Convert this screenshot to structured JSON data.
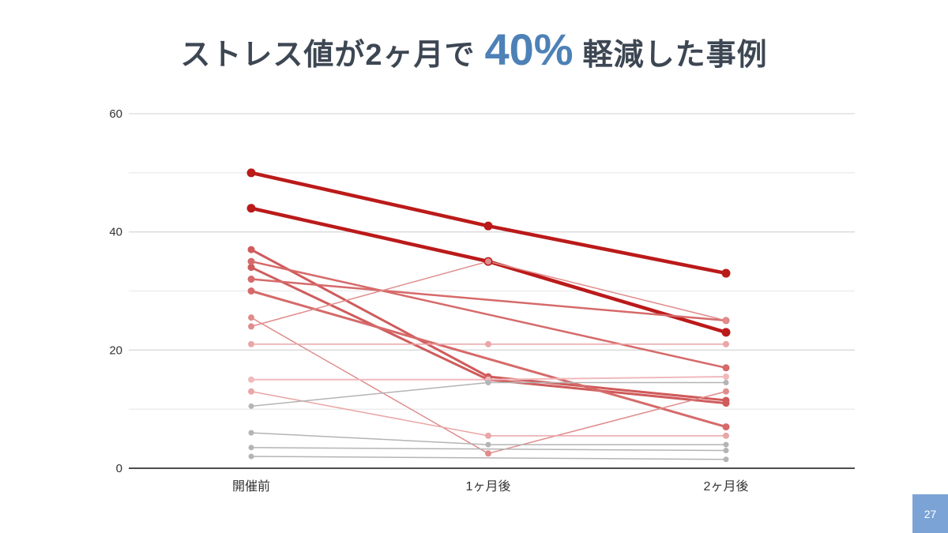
{
  "slide": {
    "title": {
      "pre": "ストレス値が2ヶ月で",
      "highlight": "40%",
      "post": "軽減した事例"
    },
    "page_number": "27"
  },
  "colors": {
    "title_text": "#3d4753",
    "title_highlight": "#4d81b7",
    "page_badge_bg": "#7ba3d6",
    "page_badge_text": "#ffffff",
    "axis_line": "#4d4d4d",
    "gridline_major": "#d9d9d9",
    "gridline_minor": "#ececec",
    "tick_label": "#333333",
    "emphasis_red": "#bb1a1a",
    "neutral_gray": "#b4b4b4"
  },
  "chart_data": {
    "type": "line",
    "title": "ストレス値が2ヶ月で40%軽減した事例",
    "xlabel": "",
    "ylabel": "",
    "categories": [
      "開催前",
      "1ヶ月後",
      "2ヶ月後"
    ],
    "ylim": [
      0,
      60
    ],
    "yticks_labeled": [
      0,
      20,
      40,
      60
    ],
    "gridline_step": 10,
    "grid": true,
    "legend_position": "none",
    "series": [
      {
        "values": [
          50,
          41,
          33
        ],
        "color": "#bb1a1a",
        "width": 4.5,
        "dot": 5.5
      },
      {
        "values": [
          44,
          35,
          23
        ],
        "color": "#bb1a1a",
        "width": 4.5,
        "dot": 5.5
      },
      {
        "values": [
          37,
          15.5,
          11.5
        ],
        "color": "#cf5b5b",
        "width": 3,
        "dot": 4.5
      },
      {
        "values": [
          34,
          15,
          11
        ],
        "color": "#cf5b5b",
        "width": 3,
        "dot": 4.5
      },
      {
        "values": [
          35,
          null,
          17
        ],
        "color": "#d66a6a",
        "width": 2.5,
        "dot": 4.5
      },
      {
        "values": [
          32,
          null,
          25
        ],
        "color": "#d66a6a",
        "width": 2.5,
        "dot": 4.5
      },
      {
        "values": [
          30,
          null,
          7
        ],
        "color": "#d66a6a",
        "width": 3,
        "dot": 4.5
      },
      {
        "values": [
          25.5,
          2.5,
          13
        ],
        "color": "#e08c8c",
        "width": 1.5,
        "dot": 4
      },
      {
        "values": [
          24,
          35,
          25
        ],
        "color": "#e08c8c",
        "width": 1.5,
        "dot": 4
      },
      {
        "values": [
          21,
          21,
          21
        ],
        "color": "#eaa6a6",
        "width": 1.5,
        "dot": 4
      },
      {
        "values": [
          15,
          15,
          15.5
        ],
        "color": "#f0b9bd",
        "width": 2,
        "dot": 4
      },
      {
        "values": [
          13,
          5.5,
          5.5
        ],
        "color": "#eaa6a6",
        "width": 1.5,
        "dot": 4
      },
      {
        "values": [
          10.5,
          14.5,
          14.5
        ],
        "color": "#b4b4b4",
        "width": 1.5,
        "dot": 3.5
      },
      {
        "values": [
          6,
          4,
          4
        ],
        "color": "#b4b4b4",
        "width": 1.5,
        "dot": 3.5
      },
      {
        "values": [
          3.5,
          null,
          3
        ],
        "color": "#b4b4b4",
        "width": 1.5,
        "dot": 3.5
      },
      {
        "values": [
          2,
          null,
          1.5
        ],
        "color": "#b4b4b4",
        "width": 1.5,
        "dot": 3.5
      }
    ]
  }
}
